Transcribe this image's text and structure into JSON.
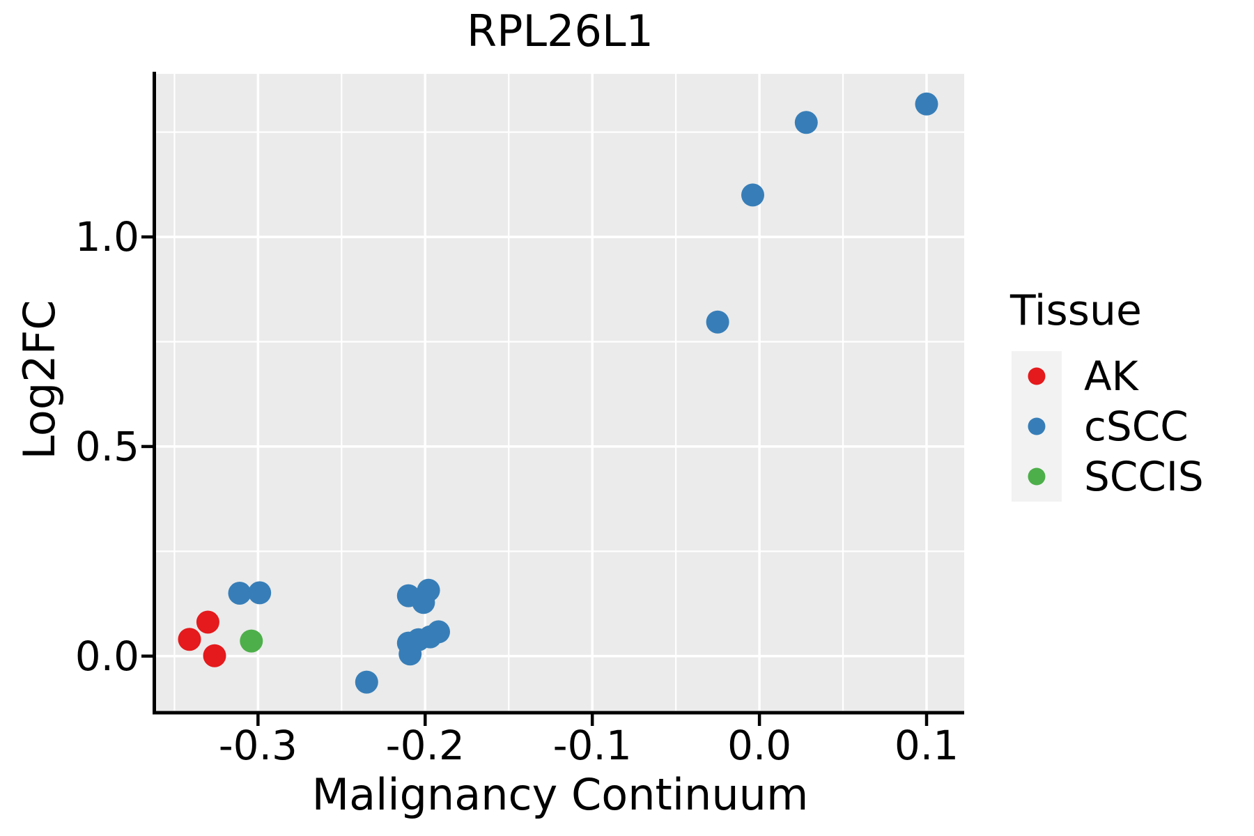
{
  "colors": {
    "panel_background": "#EBEBEB",
    "grid": "#FFFFFF",
    "axis_line": "#000000",
    "tick_mark": "#000000",
    "text": "#000000",
    "legend_key_background": "#F2F2F2",
    "ak_red": "#E41A1C",
    "cscc_blue": "#377EB8",
    "sccis_green": "#4DAF4A"
  },
  "chart_data": {
    "type": "scatter",
    "title": "RPL26L1",
    "xlabel": "Malignancy Continuum",
    "ylabel": "Log2FC",
    "legend_title": "Tissue",
    "legend_position": "right",
    "grid": true,
    "xlim": [
      -0.361,
      0.1225
    ],
    "ylim": [
      -0.13,
      1.389
    ],
    "x_ticks": [
      -0.3,
      -0.2,
      -0.1,
      0.0,
      0.1
    ],
    "x_tick_labels": [
      "-0.3",
      "-0.2",
      "-0.1",
      "0.0",
      "0.1"
    ],
    "x_minor_ticks": [
      -0.35,
      -0.25,
      -0.15,
      -0.05,
      0.05
    ],
    "y_ticks": [
      0.0,
      0.5,
      1.0
    ],
    "y_tick_labels": [
      "0.0",
      "0.5",
      "1.0"
    ],
    "y_minor_ticks": [
      0.25,
      0.75,
      1.25
    ],
    "series": [
      {
        "name": "AK",
        "color": "#E41A1C",
        "points": [
          [
            -0.341,
            0.04
          ],
          [
            -0.33,
            0.081
          ],
          [
            -0.326,
            0.001
          ]
        ]
      },
      {
        "name": "cSCC",
        "color": "#377EB8",
        "points": [
          [
            -0.311,
            0.15
          ],
          [
            -0.299,
            0.151
          ],
          [
            -0.235,
            -0.062
          ],
          [
            -0.21,
            0.144
          ],
          [
            -0.21,
            0.031
          ],
          [
            -0.209,
            0.005
          ],
          [
            -0.204,
            0.039
          ],
          [
            -0.201,
            0.128
          ],
          [
            -0.198,
            0.157
          ],
          [
            -0.197,
            0.046
          ],
          [
            -0.192,
            0.058
          ],
          [
            -0.025,
            0.797
          ],
          [
            -0.004,
            1.1
          ],
          [
            0.028,
            1.273
          ],
          [
            0.1,
            1.317
          ]
        ]
      },
      {
        "name": "SCCIS",
        "color": "#4DAF4A",
        "points": [
          [
            -0.304,
            0.036
          ]
        ]
      }
    ]
  }
}
